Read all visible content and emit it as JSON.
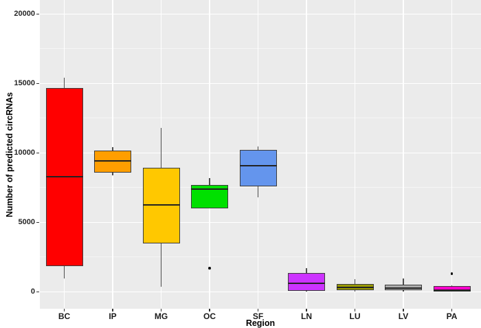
{
  "figure": {
    "panel_bg_color": "#EBEBEB",
    "grid_major_color": "#FFFFFF",
    "grid_minor_color": "#F5F5F5",
    "axis_text_color": "#262626",
    "axis_title_color": "#000000"
  },
  "chart_data": {
    "type": "boxplot",
    "title": "",
    "xlabel": "Region",
    "ylabel": "Number of predicted circRNAs",
    "categories": [
      "BC",
      "IP",
      "MG",
      "OC",
      "SF",
      "LN",
      "LU",
      "LV",
      "PA"
    ],
    "ylim": [
      0,
      20000
    ],
    "yticks": [
      0,
      5000,
      10000,
      15000,
      20000
    ],
    "yticks_minor": [
      2500,
      7500,
      12500,
      17500
    ],
    "grid": true,
    "legend": "none",
    "boxes": [
      {
        "category": "BC",
        "color": "#FF0000",
        "whisker_low": 950,
        "q1": 1850,
        "median": 8300,
        "q3": 14650,
        "whisker_high": 15400,
        "outliers": []
      },
      {
        "category": "IP",
        "color": "#FF9E00",
        "whisker_low": 8400,
        "q1": 8600,
        "median": 9400,
        "q3": 10150,
        "whisker_high": 10400,
        "outliers": []
      },
      {
        "category": "MG",
        "color": "#FFC800",
        "whisker_low": 350,
        "q1": 3500,
        "median": 6250,
        "q3": 8950,
        "whisker_high": 11800,
        "outliers": []
      },
      {
        "category": "OC",
        "color": "#00E000",
        "whisker_low": 6000,
        "q1": 6000,
        "median": 7400,
        "q3": 7700,
        "whisker_high": 8200,
        "outliers": [
          1700
        ]
      },
      {
        "category": "SF",
        "color": "#6495ED",
        "whisker_low": 6800,
        "q1": 7600,
        "median": 9050,
        "q3": 10200,
        "whisker_high": 10450,
        "outliers": []
      },
      {
        "category": "LN",
        "color": "#CC33FF",
        "whisker_low": 0,
        "q1": 80,
        "median": 620,
        "q3": 1350,
        "whisker_high": 1700,
        "outliers": []
      },
      {
        "category": "LU",
        "color": "#999900",
        "whisker_low": 0,
        "q1": 100,
        "median": 300,
        "q3": 580,
        "whisker_high": 900,
        "outliers": []
      },
      {
        "category": "LV",
        "color": "#ABABAB",
        "whisker_low": 0,
        "q1": 100,
        "median": 250,
        "q3": 520,
        "whisker_high": 950,
        "outliers": []
      },
      {
        "category": "PA",
        "color": "#FF00CC",
        "whisker_low": 0,
        "q1": 30,
        "median": 100,
        "q3": 400,
        "whisker_high": 450,
        "outliers": [
          1300
        ]
      }
    ]
  }
}
